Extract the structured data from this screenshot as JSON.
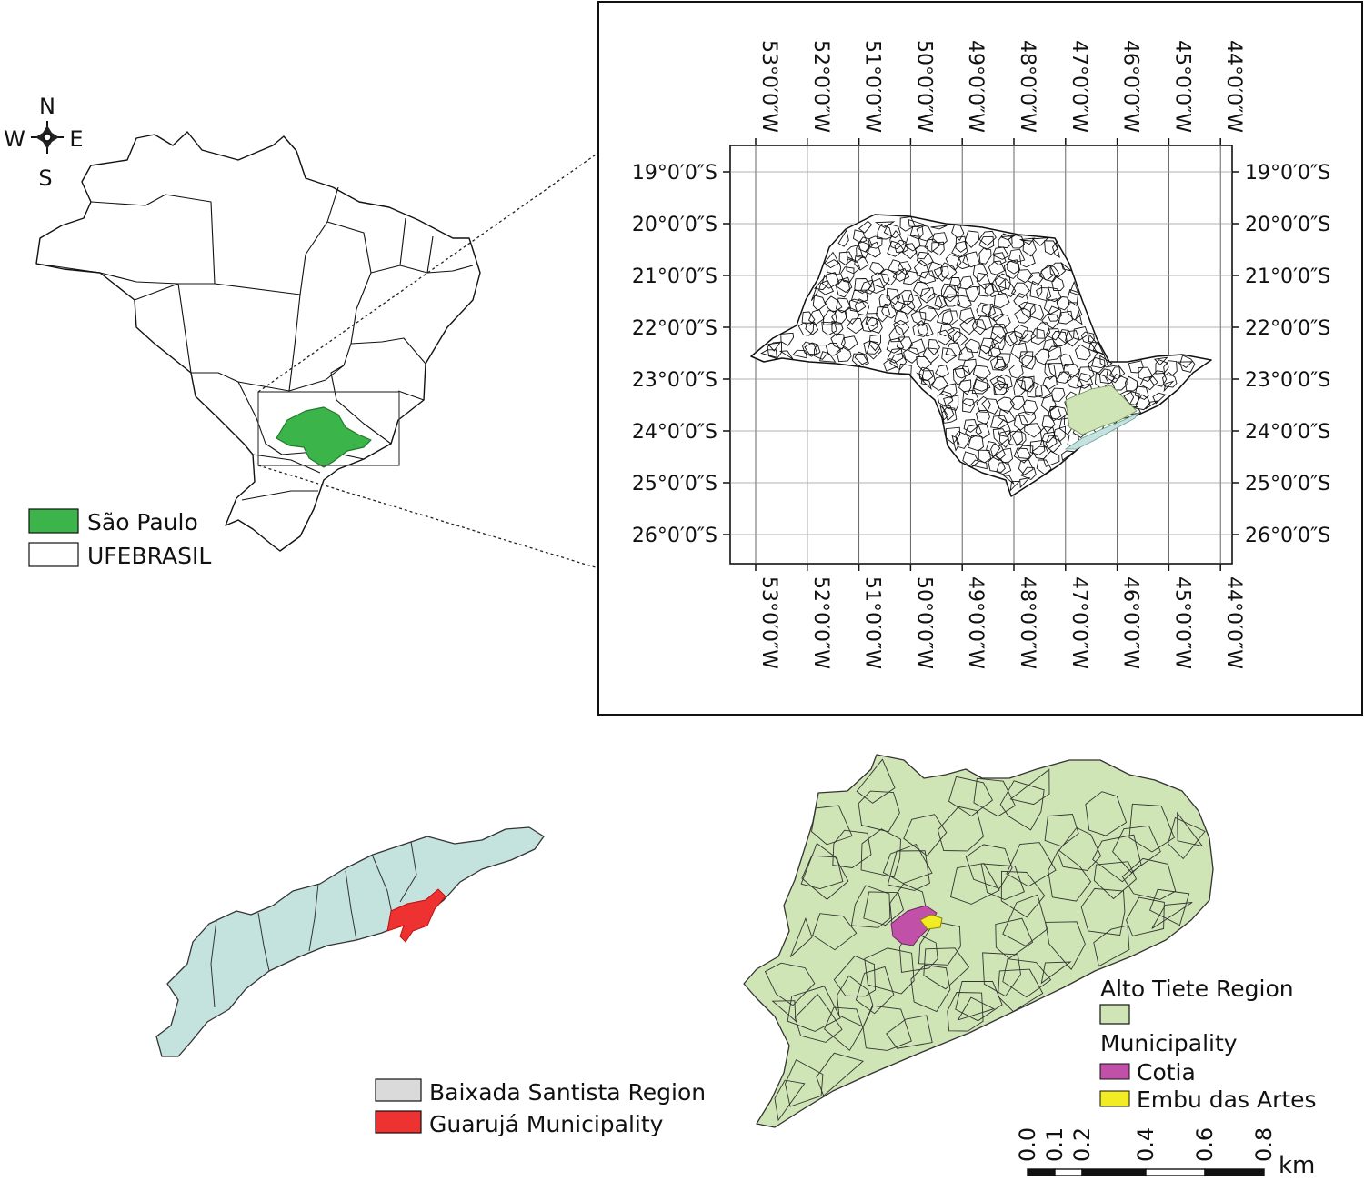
{
  "compass": {
    "n": "N",
    "s": "S",
    "e": "E",
    "w": "W"
  },
  "brazil_legend": [
    {
      "label": "São Paulo",
      "color": "#3bb54a"
    },
    {
      "label": "UFEBRASIL",
      "color": "#ffffff"
    }
  ],
  "inset": {
    "longitudes": [
      "53°0′0″W",
      "52°0′0″W",
      "51°0′0″W",
      "50°0′0″W",
      "49°0′0″W",
      "48°0′0″W",
      "47°0′0″W",
      "46°0′0″W",
      "45°0′0″W",
      "44°0′0″W"
    ],
    "latitudes": [
      "19°0′0″S",
      "20°0′0″S",
      "21°0′0″S",
      "22°0′0″S",
      "23°0′0″S",
      "24°0′0″S",
      "25°0′0″S",
      "26°0′0″S"
    ],
    "highlight_colors": {
      "alto_tiete": "#cfe5b5",
      "baixada": "#c4e3de"
    }
  },
  "baixada_legend": [
    {
      "label": "Baixada Santista Region",
      "color": "#d9dad9"
    },
    {
      "label": "Guarujá Municipality",
      "color": "#ee3131"
    }
  ],
  "alto_legend": {
    "region_title": "Alto Tiete Region",
    "region_color": "#cfe5b5",
    "municipality_title": "Municipality",
    "items": [
      {
        "label": "Cotia",
        "color": "#c150a8"
      },
      {
        "label": "Embu das Artes",
        "color": "#f2ec24"
      }
    ]
  },
  "scale_bar": {
    "ticks": [
      "0.0",
      "0.1",
      "0.2",
      "0.4",
      "0.6",
      "0.8"
    ],
    "unit": "km"
  }
}
